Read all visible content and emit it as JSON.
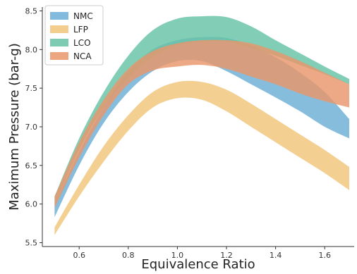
{
  "chart_data": {
    "type": "area",
    "title": "",
    "xlabel": "Equivalence Ratio",
    "ylabel": "Maximum Pressure (bar-g)",
    "xlim": [
      0.45,
      1.72
    ],
    "ylim": [
      5.45,
      8.55
    ],
    "xticks": [
      0.6,
      0.8,
      1.0,
      1.2,
      1.4,
      1.6
    ],
    "yticks": [
      5.5,
      6.0,
      6.5,
      7.0,
      7.5,
      8.0,
      8.5
    ],
    "grid": false,
    "legend": "top-left",
    "x": [
      0.5,
      0.6,
      0.7,
      0.8,
      0.9,
      1.0,
      1.1,
      1.2,
      1.3,
      1.4,
      1.5,
      1.6,
      1.7
    ],
    "series": [
      {
        "name": "NMC",
        "color": "#6baed6",
        "lower": [
          5.83,
          6.5,
          7.05,
          7.45,
          7.72,
          7.85,
          7.85,
          7.72,
          7.55,
          7.38,
          7.2,
          7.0,
          6.85
        ],
        "upper": [
          6.0,
          6.68,
          7.25,
          7.72,
          8.0,
          8.12,
          8.16,
          8.15,
          8.05,
          7.9,
          7.7,
          7.45,
          7.1
        ]
      },
      {
        "name": "LFP",
        "color": "#f0c479",
        "lower": [
          5.6,
          6.1,
          6.55,
          6.95,
          7.25,
          7.37,
          7.35,
          7.2,
          7.0,
          6.8,
          6.6,
          6.4,
          6.18
        ],
        "upper": [
          5.7,
          6.25,
          6.75,
          7.15,
          7.45,
          7.58,
          7.58,
          7.48,
          7.3,
          7.1,
          6.9,
          6.7,
          6.48
        ]
      },
      {
        "name": "LCO",
        "color": "#66c2a5",
        "lower": [
          6.0,
          6.7,
          7.25,
          7.63,
          7.9,
          8.05,
          8.1,
          8.1,
          8.02,
          7.92,
          7.8,
          7.68,
          7.55
        ],
        "upper": [
          6.1,
          6.85,
          7.45,
          7.92,
          8.25,
          8.4,
          8.43,
          8.42,
          8.3,
          8.12,
          7.95,
          7.78,
          7.62
        ]
      },
      {
        "name": "NCA",
        "color": "#e9966a",
        "lower": [
          5.95,
          6.6,
          7.15,
          7.55,
          7.73,
          7.78,
          7.8,
          7.75,
          7.65,
          7.55,
          7.43,
          7.33,
          7.25
        ],
        "upper": [
          6.1,
          6.8,
          7.35,
          7.75,
          7.98,
          8.08,
          8.12,
          8.12,
          8.08,
          7.98,
          7.85,
          7.7,
          7.55
        ]
      }
    ]
  }
}
